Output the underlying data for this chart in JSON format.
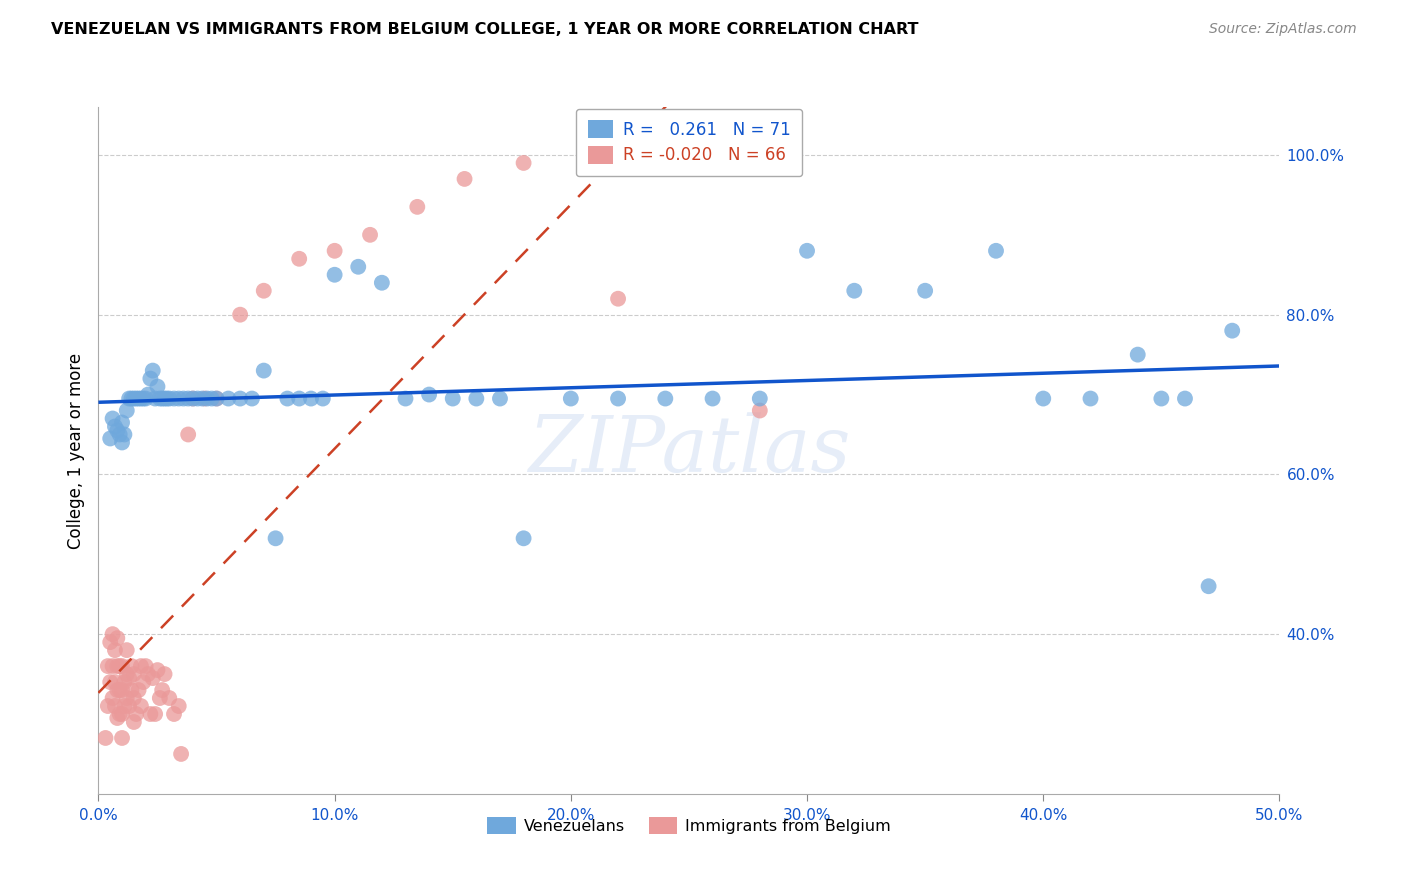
{
  "title": "VENEZUELAN VS IMMIGRANTS FROM BELGIUM COLLEGE, 1 YEAR OR MORE CORRELATION CHART",
  "source": "Source: ZipAtlas.com",
  "ylabel": "College, 1 year or more",
  "xlim": [
    0.0,
    0.5
  ],
  "ylim": [
    0.2,
    1.06
  ],
  "xticks": [
    0.0,
    0.1,
    0.2,
    0.3,
    0.4,
    0.5
  ],
  "xtick_labels": [
    "0.0%",
    "10.0%",
    "20.0%",
    "30.0%",
    "40.0%",
    "50.0%"
  ],
  "yticks": [
    0.4,
    0.6,
    0.8,
    1.0
  ],
  "ytick_labels": [
    "40.0%",
    "60.0%",
    "80.0%",
    "100.0%"
  ],
  "watermark": "ZIPatlas",
  "blue_R": 0.261,
  "blue_N": 71,
  "pink_R": -0.02,
  "pink_N": 66,
  "blue_color": "#6fa8dc",
  "pink_color": "#ea9999",
  "blue_line_color": "#1155cc",
  "pink_line_color": "#cc4125",
  "blue_scatter_x": [
    0.005,
    0.006,
    0.007,
    0.008,
    0.009,
    0.01,
    0.01,
    0.011,
    0.012,
    0.013,
    0.014,
    0.015,
    0.016,
    0.017,
    0.018,
    0.019,
    0.02,
    0.021,
    0.022,
    0.023,
    0.024,
    0.025,
    0.026,
    0.027,
    0.028,
    0.029,
    0.03,
    0.032,
    0.034,
    0.036,
    0.038,
    0.04,
    0.042,
    0.044,
    0.046,
    0.048,
    0.05,
    0.055,
    0.06,
    0.065,
    0.07,
    0.075,
    0.08,
    0.085,
    0.09,
    0.095,
    0.1,
    0.11,
    0.12,
    0.13,
    0.14,
    0.15,
    0.16,
    0.17,
    0.18,
    0.2,
    0.22,
    0.24,
    0.26,
    0.28,
    0.3,
    0.32,
    0.35,
    0.38,
    0.4,
    0.42,
    0.44,
    0.45,
    0.46,
    0.47,
    0.48
  ],
  "blue_scatter_y": [
    0.645,
    0.67,
    0.66,
    0.655,
    0.65,
    0.64,
    0.665,
    0.65,
    0.68,
    0.695,
    0.695,
    0.695,
    0.695,
    0.695,
    0.695,
    0.695,
    0.695,
    0.7,
    0.72,
    0.73,
    0.695,
    0.71,
    0.695,
    0.695,
    0.695,
    0.695,
    0.695,
    0.695,
    0.695,
    0.695,
    0.695,
    0.695,
    0.695,
    0.695,
    0.695,
    0.695,
    0.695,
    0.695,
    0.695,
    0.695,
    0.73,
    0.52,
    0.695,
    0.695,
    0.695,
    0.695,
    0.85,
    0.86,
    0.84,
    0.695,
    0.7,
    0.695,
    0.695,
    0.695,
    0.52,
    0.695,
    0.695,
    0.695,
    0.695,
    0.695,
    0.88,
    0.83,
    0.83,
    0.88,
    0.695,
    0.695,
    0.75,
    0.695,
    0.695,
    0.46,
    0.78
  ],
  "pink_scatter_x": [
    0.003,
    0.004,
    0.004,
    0.005,
    0.005,
    0.006,
    0.006,
    0.006,
    0.007,
    0.007,
    0.007,
    0.008,
    0.008,
    0.008,
    0.008,
    0.009,
    0.009,
    0.009,
    0.01,
    0.01,
    0.01,
    0.01,
    0.011,
    0.011,
    0.012,
    0.012,
    0.012,
    0.013,
    0.013,
    0.014,
    0.014,
    0.015,
    0.015,
    0.015,
    0.016,
    0.017,
    0.018,
    0.018,
    0.019,
    0.02,
    0.021,
    0.022,
    0.023,
    0.024,
    0.025,
    0.026,
    0.027,
    0.028,
    0.03,
    0.032,
    0.034,
    0.035,
    0.038,
    0.04,
    0.045,
    0.05,
    0.06,
    0.07,
    0.085,
    0.1,
    0.115,
    0.135,
    0.155,
    0.18,
    0.22,
    0.28
  ],
  "pink_scatter_y": [
    0.27,
    0.31,
    0.36,
    0.34,
    0.39,
    0.32,
    0.36,
    0.4,
    0.31,
    0.34,
    0.38,
    0.295,
    0.33,
    0.36,
    0.395,
    0.3,
    0.33,
    0.36,
    0.27,
    0.3,
    0.33,
    0.36,
    0.31,
    0.34,
    0.32,
    0.35,
    0.38,
    0.31,
    0.345,
    0.33,
    0.36,
    0.29,
    0.32,
    0.35,
    0.3,
    0.33,
    0.31,
    0.36,
    0.34,
    0.36,
    0.35,
    0.3,
    0.345,
    0.3,
    0.355,
    0.32,
    0.33,
    0.35,
    0.32,
    0.3,
    0.31,
    0.25,
    0.65,
    0.695,
    0.695,
    0.695,
    0.8,
    0.83,
    0.87,
    0.88,
    0.9,
    0.935,
    0.97,
    0.99,
    0.82,
    0.68
  ]
}
